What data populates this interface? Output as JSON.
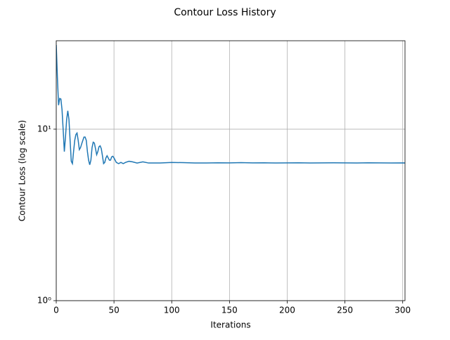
{
  "chart_data": {
    "type": "line",
    "title": "Contour Loss History",
    "xlabel": "Iterations",
    "ylabel": "Contour Loss (log scale)",
    "series": [
      {
        "name": "Contour Loss",
        "color": "#1f77b4",
        "x": [
          0,
          1,
          2,
          3,
          4,
          5,
          6,
          7,
          8,
          9,
          10,
          11,
          12,
          13,
          14,
          15,
          16,
          17,
          18,
          19,
          20,
          21,
          22,
          24,
          25,
          26,
          27,
          28,
          29,
          30,
          31,
          32,
          33,
          34,
          35,
          36,
          37,
          38,
          39,
          40,
          41,
          42,
          43,
          44,
          45,
          46,
          47,
          48,
          49,
          50,
          52,
          54,
          56,
          58,
          60,
          63,
          66,
          70,
          75,
          80,
          90,
          100,
          110,
          120,
          130,
          140,
          150,
          160,
          170,
          180,
          190,
          200,
          210,
          220,
          230,
          240,
          250,
          260,
          270,
          280,
          290,
          300,
          302
        ],
        "values": [
          31,
          20,
          13.8,
          15.1,
          15,
          13,
          9.9,
          7.4,
          9,
          11.4,
          12.8,
          11.4,
          8.6,
          6.5,
          6.3,
          7.4,
          8.6,
          9.3,
          9.5,
          8.6,
          7.6,
          7.8,
          8.2,
          9,
          9,
          8.6,
          7.4,
          6.6,
          6.2,
          6.6,
          7.8,
          8.4,
          8.3,
          7.7,
          7.1,
          7.4,
          7.9,
          8,
          7.7,
          7,
          6.3,
          6.4,
          6.8,
          7,
          6.8,
          6.6,
          6.6,
          6.9,
          6.95,
          6.8,
          6.4,
          6.3,
          6.4,
          6.3,
          6.4,
          6.5,
          6.45,
          6.35,
          6.45,
          6.35,
          6.35,
          6.4,
          6.38,
          6.35,
          6.35,
          6.37,
          6.36,
          6.38,
          6.36,
          6.37,
          6.35,
          6.36,
          6.37,
          6.35,
          6.36,
          6.37,
          6.36,
          6.35,
          6.37,
          6.36,
          6.35,
          6.36,
          6.35
        ]
      }
    ],
    "xlim": [
      0,
      302
    ],
    "xticks": [
      0,
      50,
      100,
      150,
      200,
      250,
      300
    ],
    "ylim": [
      1,
      32.8
    ],
    "yticks": [
      {
        "value": 1,
        "label": "10⁰"
      },
      {
        "value": 10,
        "label": "10¹"
      }
    ],
    "log_y": true,
    "grid": true
  }
}
